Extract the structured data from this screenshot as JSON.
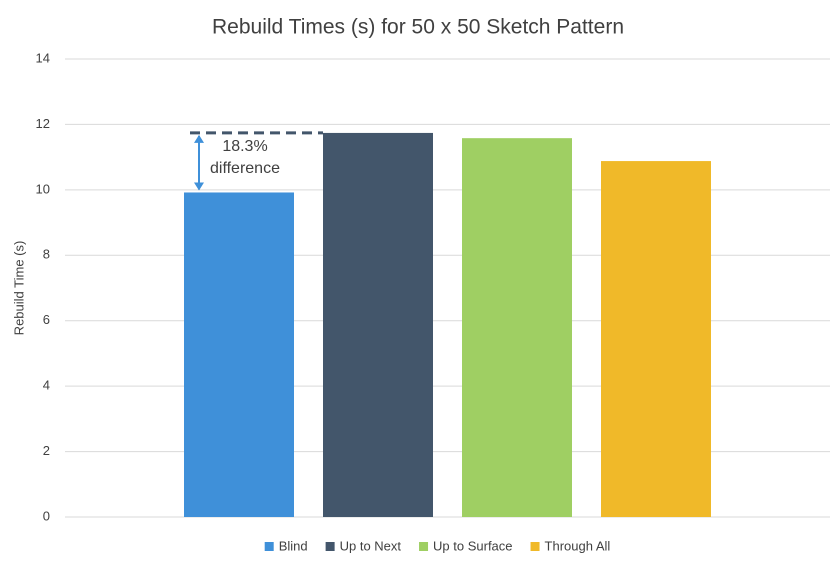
{
  "chart_data": {
    "type": "bar",
    "title": "Rebuild Times (s) for 50 x 50 Sketch Pattern",
    "y_label": "Rebuild Time (s)",
    "categories": [
      null
    ],
    "series": [
      {
        "name": "Blind",
        "color": "#3f90d9",
        "values": [
          9.92
        ]
      },
      {
        "name": "Up to Next",
        "color": "#43566b",
        "values": [
          11.74
        ]
      },
      {
        "name": "Up to Surface",
        "color": "#9fcf63",
        "values": [
          11.58
        ]
      },
      {
        "name": "Through All",
        "color": "#f0b929",
        "values": [
          10.88
        ]
      }
    ],
    "annotation_lines": [
      "18.3%",
      "difference"
    ],
    "ylim": [
      0,
      14
    ],
    "yticks": [
      0,
      2,
      4,
      6,
      8,
      10,
      12,
      14
    ],
    "grid": true,
    "legend": "bottom"
  }
}
